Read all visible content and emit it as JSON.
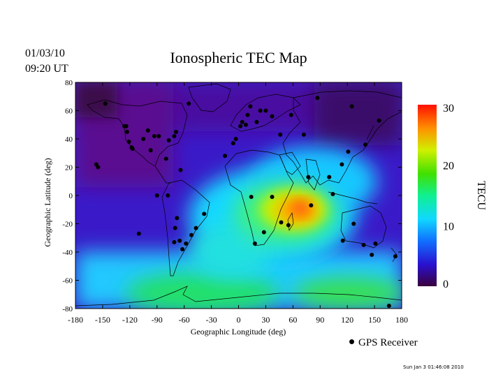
{
  "header": {
    "date": "01/03/10",
    "time": "09:20 UT",
    "title": "Ionospheric TEC Map"
  },
  "axes": {
    "xlabel": "Geographic Longitude (deg)",
    "ylabel": "Geographic Latitude (deg)",
    "xticks": [
      "-180",
      "-150",
      "-120",
      "-90",
      "-60",
      "-30",
      "0",
      "30",
      "60",
      "90",
      "120",
      "150",
      "180"
    ],
    "yticks": [
      "80",
      "60",
      "40",
      "20",
      "0",
      "-20",
      "-40",
      "-60",
      "-80"
    ],
    "xlim": [
      -180,
      180
    ],
    "ylim": [
      -80,
      80
    ]
  },
  "colorbar": {
    "label": "TECU",
    "ticks": [
      "30",
      "20",
      "10",
      "0"
    ],
    "range": [
      0,
      30
    ],
    "colors": [
      "#3a003c",
      "#2a10d0",
      "#1070ff",
      "#10d8ff",
      "#10f090",
      "#40e000",
      "#d0f000",
      "#ff9000",
      "#ff1000"
    ]
  },
  "legend": {
    "receiver_label": "GPS Receiver"
  },
  "footer": {
    "stamp": "Sun Jan  3 01:46:08 2010"
  },
  "chart_data": {
    "type": "heatmap",
    "title": "Ionospheric TEC Map",
    "xlabel": "Geographic Longitude (deg)",
    "ylabel": "Geographic Latitude (deg)",
    "unit": "TECU",
    "tec_features": [
      {
        "lon": 70,
        "lat": -10,
        "tec": 28
      },
      {
        "lon": 50,
        "lat": -15,
        "tec": 22
      },
      {
        "lon": 30,
        "lat": -20,
        "tec": 17
      },
      {
        "lon": 0,
        "lat": -30,
        "tec": 15
      },
      {
        "lon": -30,
        "lat": -40,
        "tec": 13
      },
      {
        "lon": -60,
        "lat": -65,
        "tec": 17
      },
      {
        "lon": 120,
        "lat": -70,
        "tec": 15
      },
      {
        "lon": 100,
        "lat": 20,
        "tec": 13
      },
      {
        "lon": -10,
        "lat": 10,
        "tec": 10
      },
      {
        "lon": -150,
        "lat": -50,
        "tec": 10
      },
      {
        "lon": -120,
        "lat": 30,
        "tec": 5
      },
      {
        "lon": -160,
        "lat": 65,
        "tec": 1
      },
      {
        "lon": 60,
        "lat": 60,
        "tec": 4
      },
      {
        "lon": 130,
        "lat": 65,
        "tec": 1
      },
      {
        "lon": -40,
        "lat": 65,
        "tec": 3
      }
    ],
    "gps_receivers": [
      [
        -147,
        65
      ],
      [
        -126,
        49
      ],
      [
        -123,
        45
      ],
      [
        -124,
        49
      ],
      [
        -121,
        38
      ],
      [
        -118,
        34
      ],
      [
        -117,
        33
      ],
      [
        -105,
        40
      ],
      [
        -100,
        46
      ],
      [
        -97,
        32
      ],
      [
        -93,
        42
      ],
      [
        -88,
        42
      ],
      [
        -80,
        26
      ],
      [
        -77,
        39
      ],
      [
        -71,
        42
      ],
      [
        -69,
        45
      ],
      [
        -64,
        18
      ],
      [
        -90,
        0
      ],
      [
        -78,
        0
      ],
      [
        -71,
        -33
      ],
      [
        -68,
        -16
      ],
      [
        -70,
        -23
      ],
      [
        -65,
        -32
      ],
      [
        -58,
        -34
      ],
      [
        -62,
        -38
      ],
      [
        -52,
        -28
      ],
      [
        -47,
        -23
      ],
      [
        -38,
        -13
      ],
      [
        -55,
        65
      ],
      [
        -157,
        22
      ],
      [
        -155,
        20
      ],
      [
        -110,
        -27
      ],
      [
        -15,
        28
      ],
      [
        -6,
        37
      ],
      [
        -3,
        40
      ],
      [
        2,
        49
      ],
      [
        4,
        52
      ],
      [
        8,
        50
      ],
      [
        10,
        57
      ],
      [
        13,
        63
      ],
      [
        24,
        60
      ],
      [
        30,
        60
      ],
      [
        37,
        56
      ],
      [
        20,
        52
      ],
      [
        46,
        43
      ],
      [
        58,
        57
      ],
      [
        72,
        43
      ],
      [
        87,
        69
      ],
      [
        77,
        13
      ],
      [
        80,
        -7
      ],
      [
        55,
        -21
      ],
      [
        47,
        -19
      ],
      [
        37,
        -1
      ],
      [
        14,
        -1
      ],
      [
        28,
        -26
      ],
      [
        18,
        -34
      ],
      [
        104,
        1
      ],
      [
        100,
        13
      ],
      [
        121,
        31
      ],
      [
        127,
        -20
      ],
      [
        138,
        -35
      ],
      [
        151,
        -34
      ],
      [
        115,
        -32
      ],
      [
        147,
        -42
      ],
      [
        173,
        -43
      ],
      [
        166,
        -78
      ],
      [
        114,
        22
      ],
      [
        140,
        36
      ],
      [
        155,
        53
      ],
      [
        125,
        63
      ]
    ]
  }
}
